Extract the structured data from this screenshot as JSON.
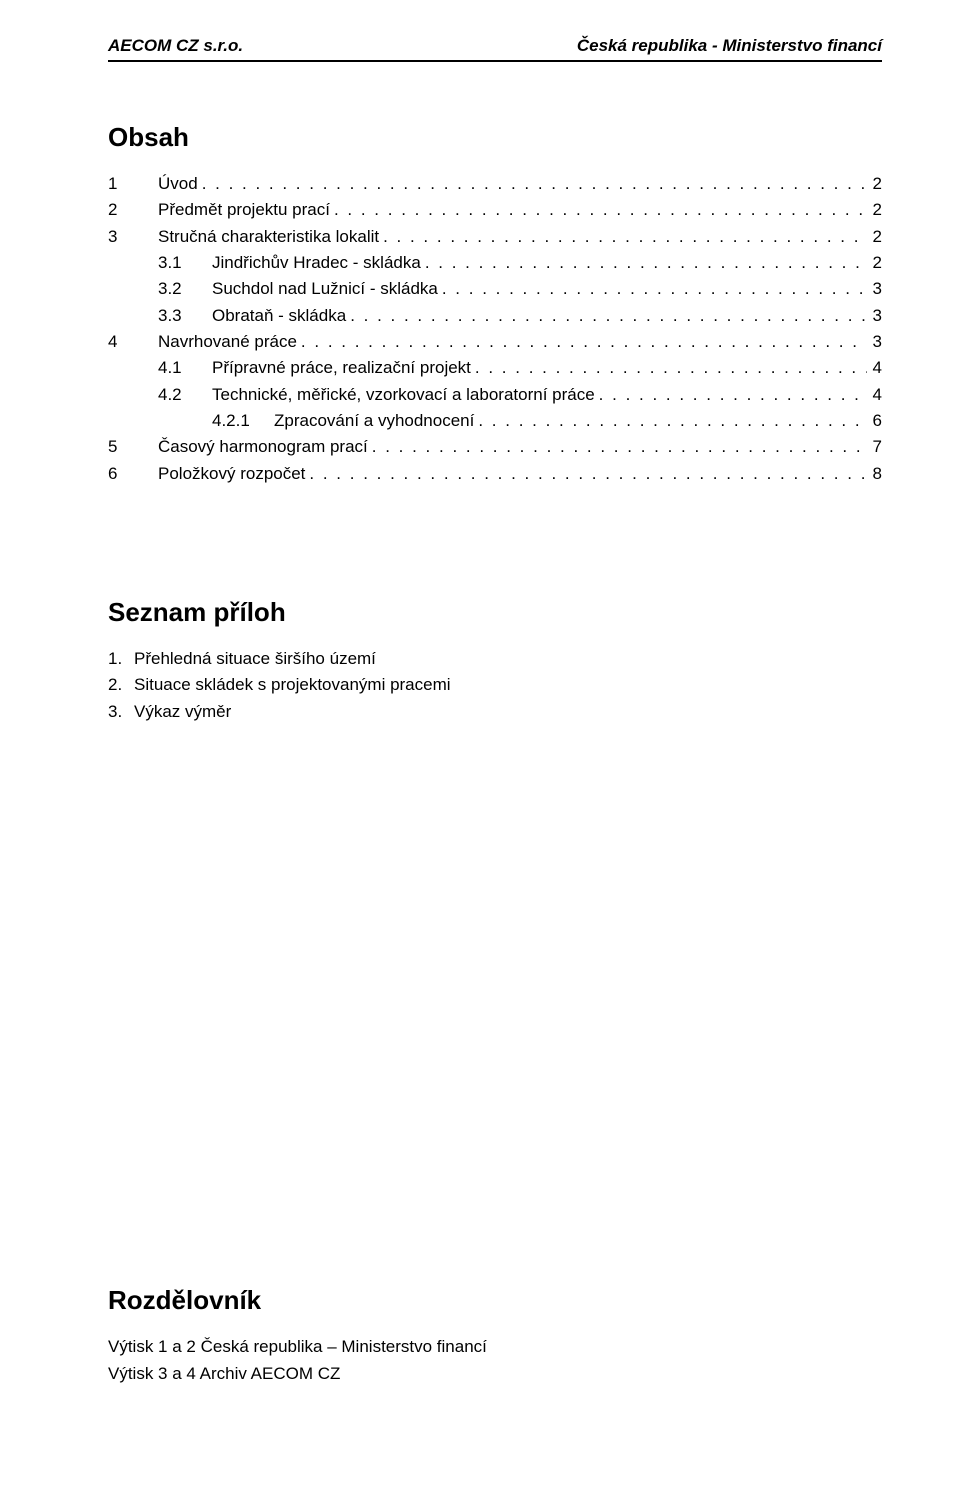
{
  "header": {
    "left": "AECOM CZ s.r.o.",
    "right": "Česká republika - Ministerstvo financí"
  },
  "toc": {
    "title": "Obsah",
    "entries": [
      {
        "num": "1",
        "title": "Úvod",
        "page": "2",
        "indent": 0
      },
      {
        "num": "2",
        "title": "Předmět projektu prací",
        "page": "2",
        "indent": 0
      },
      {
        "num": "3",
        "title": "Stručná charakteristika lokalit",
        "page": "2",
        "indent": 0
      },
      {
        "num": "3.1",
        "title": "Jindřichův Hradec - skládka",
        "page": "2",
        "indent": 1
      },
      {
        "num": "3.2",
        "title": "Suchdol nad Lužnicí - skládka",
        "page": "3",
        "indent": 1
      },
      {
        "num": "3.3",
        "title": "Obrataň - skládka",
        "page": "3",
        "indent": 1
      },
      {
        "num": "4",
        "title": "Navrhované práce",
        "page": "3",
        "indent": 0
      },
      {
        "num": "4.1",
        "title": "Přípravné práce, realizační projekt",
        "page": "4",
        "indent": 1
      },
      {
        "num": "4.2",
        "title": "Technické, měřické, vzorkovací a laboratorní práce",
        "page": "4",
        "indent": 1
      },
      {
        "num": "4.2.1",
        "title": "Zpracování a vyhodnocení",
        "page": "6",
        "indent": 2
      },
      {
        "num": "5",
        "title": "Časový harmonogram prací",
        "page": "7",
        "indent": 0
      },
      {
        "num": "6",
        "title": "Položkový rozpočet",
        "page": "8",
        "indent": 0
      }
    ]
  },
  "appendix": {
    "title": "Seznam příloh",
    "items": [
      {
        "num": "1.",
        "text": "Přehledná situace širšího území"
      },
      {
        "num": "2.",
        "text": "Situace skládek s projektovanými pracemi"
      },
      {
        "num": "3.",
        "text": "Výkaz výměr"
      }
    ]
  },
  "distribution": {
    "title": "Rozdělovník",
    "lines": [
      "Výtisk  1 a 2 Česká republika – Ministerstvo financí",
      "Výtisk  3 a 4 Archiv AECOM CZ"
    ]
  },
  "style": {
    "leader_char": "."
  }
}
